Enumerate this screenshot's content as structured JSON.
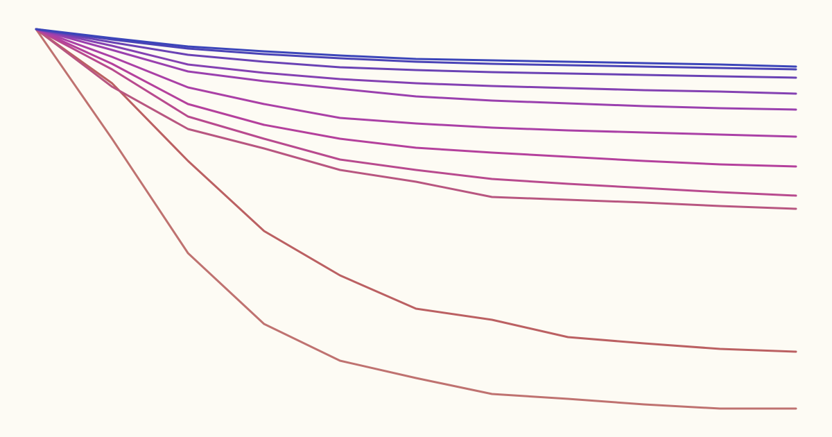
{
  "chart_data": {
    "type": "line",
    "x": [
      0,
      1,
      2,
      3,
      4,
      5,
      6,
      7,
      8,
      9,
      10
    ],
    "xlim": [
      0,
      10
    ],
    "ylim": [
      0,
      630
    ],
    "background": "#fdfbf4",
    "series": [
      {
        "color": "#3b45b9",
        "values": [
          588,
          575,
          563,
          556,
          550,
          545,
          543,
          541,
          539,
          537,
          534
        ]
      },
      {
        "color": "#4a43b6",
        "values": [
          588,
          573,
          560,
          552,
          546,
          541,
          538,
          536,
          534,
          532,
          530
        ]
      },
      {
        "color": "#6a42b4",
        "values": [
          588,
          569,
          551,
          541,
          533,
          529,
          526,
          524,
          522,
          520,
          518
        ]
      },
      {
        "color": "#8441b2",
        "values": [
          588,
          564,
          537,
          525,
          516,
          510,
          506,
          503,
          500,
          498,
          495
        ]
      },
      {
        "color": "#9a40ae",
        "values": [
          588,
          558,
          527,
          513,
          502,
          491,
          485,
          481,
          477,
          474,
          472
        ]
      },
      {
        "color": "#aa40a6",
        "values": [
          588,
          548,
          504,
          480,
          460,
          452,
          446,
          442,
          439,
          436,
          433
        ]
      },
      {
        "color": "#b4409c",
        "values": [
          588,
          538,
          480,
          450,
          430,
          417,
          410,
          404,
          398,
          393,
          390
        ]
      },
      {
        "color": "#b84a8e",
        "values": [
          588,
          530,
          462,
          430,
          400,
          385,
          372,
          365,
          359,
          353,
          348
        ]
      },
      {
        "color": "#b85680",
        "values": [
          588,
          505,
          444,
          416,
          385,
          368,
          346,
          342,
          338,
          333,
          329
        ]
      },
      {
        "color": "#bb6062",
        "values": [
          588,
          510,
          398,
          297,
          233,
          185,
          169,
          144,
          135,
          127,
          123
        ]
      },
      {
        "color": "#bf7270",
        "values": [
          588,
          430,
          265,
          163,
          110,
          85,
          62,
          55,
          47,
          41,
          41
        ]
      }
    ]
  }
}
